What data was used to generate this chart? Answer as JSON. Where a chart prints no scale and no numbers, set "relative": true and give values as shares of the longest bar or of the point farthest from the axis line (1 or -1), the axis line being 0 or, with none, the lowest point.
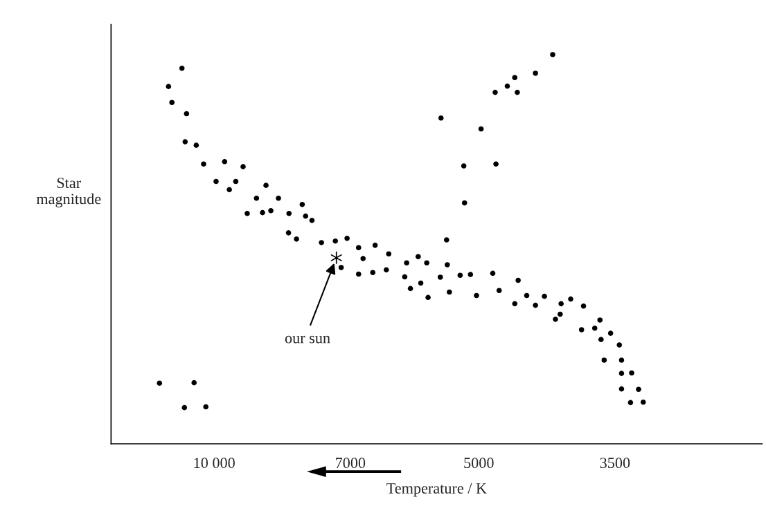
{
  "chart_data": {
    "type": "scatter",
    "xlabel": "Temperature / K",
    "ylabel": "Star\nmagnitude",
    "log": "x",
    "relative": true,
    "tick_labels": "x",
    "grid": false,
    "legend": false,
    "xlim": [
      13100,
      2380
    ],
    "xticks": [
      {
        "value": 10000,
        "label": "10 000"
      },
      7000,
      5000,
      3500
    ],
    "annotations": [
      "our sun"
    ],
    "series": [
      {
        "color": "#000000",
        "marker": "circle",
        "x": [
          11540,
          10540,
          10810,
          10220,
          10880,
          11270,
          11170,
          10750,
          10790,
          10480,
          10280,
          9730,
          9270,
          9950,
          9450,
          9610,
          8730,
          8950,
          8450,
          9170,
          8810,
          8620,
          8220,
          7940,
          7870,
          7740,
          8230,
          8060,
          7550,
          7280,
          7060,
          6850,
          6560,
          6770,
          6330,
          7170,
          6850,
          6600,
          6370,
          6040,
          6070,
          5860,
          5730,
          5980,
          5820,
          5710,
          5530,
          5440,
          5430,
          5400,
          5250,
          5110,
          5030,
          4820,
          4740,
          4510,
          4550,
          4410,
          4310,
          4210,
          4030,
          3930,
          4040,
          4090,
          3800,
          3640,
          3820,
          3690,
          3540,
          3630,
          3460,
          3600,
          3440,
          3440,
          3350,
          3440,
          3290,
          3360,
          3250,
          4120,
          4310,
          4550,
          4640,
          4790,
          4520,
          5520,
          4970,
          5200,
          4780,
          5190
        ],
        "values": [
          0.156,
          0.157,
          0.093,
          0.095,
          0.965,
          0.918,
          0.877,
          0.848,
          0.776,
          0.767,
          0.719,
          0.725,
          0.712,
          0.674,
          0.674,
          0.653,
          0.664,
          0.631,
          0.631,
          0.592,
          0.594,
          0.599,
          0.592,
          0.615,
          0.585,
          0.574,
          0.542,
          0.526,
          0.517,
          0.521,
          0.528,
          0.504,
          0.51,
          0.476,
          0.488,
          0.453,
          0.436,
          0.44,
          0.447,
          0.465,
          0.429,
          0.481,
          0.465,
          0.399,
          0.413,
          0.376,
          0.428,
          0.524,
          0.46,
          0.39,
          0.433,
          0.435,
          0.381,
          0.438,
          0.394,
          0.42,
          0.36,
          0.381,
          0.356,
          0.379,
          0.36,
          0.372,
          0.333,
          0.32,
          0.354,
          0.318,
          0.293,
          0.297,
          0.284,
          0.268,
          0.254,
          0.215,
          0.215,
          0.181,
          0.182,
          0.141,
          0.14,
          0.106,
          0.107,
          1.0,
          0.952,
          0.941,
          0.919,
          0.903,
          0.903,
          0.837,
          0.809,
          0.714,
          0.719,
          0.619
        ]
      },
      {
        "color": "#000000",
        "marker": "cross",
        "x": [
          7260
        ],
        "values": [
          0.478
        ]
      }
    ]
  }
}
